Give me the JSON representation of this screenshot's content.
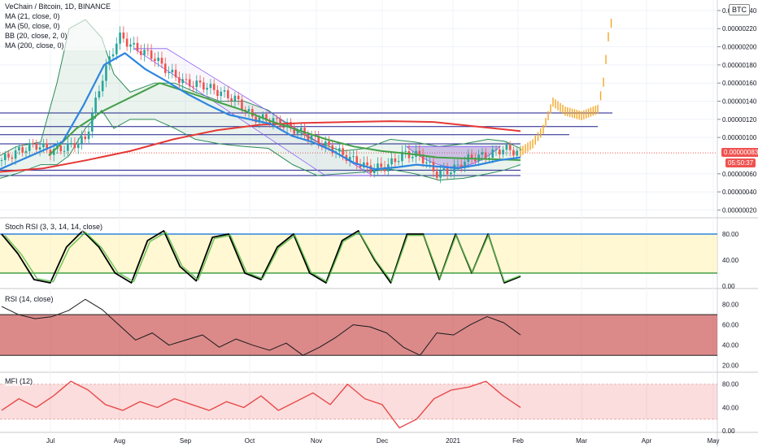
{
  "header": {
    "symbol_line": "VeChain / Bitcoin, 1D, BINANCE",
    "indicators": [
      "MA (21, close, 0)",
      "MA (50, close, 0)",
      "BB (20, close, 2, 0)",
      "MA (200, close, 0)"
    ],
    "currency_badge": "BTC"
  },
  "price_axis": {
    "ticks": [
      "0.00000240",
      "0.00000220",
      "0.00000200",
      "0.00000180",
      "0.00000160",
      "0.00000140",
      "0.00000120",
      "0.00000100",
      "0.00000060",
      "0.00000040",
      "0.00000020"
    ],
    "last_price": "0.00000083",
    "countdown": "05:50:37",
    "last_price_color": "#ef5350",
    "countdown_color": "#ef5350"
  },
  "panes": {
    "stoch": {
      "label": "Stoch RSI (3, 3, 14, 14, close)",
      "ticks": [
        "80.00",
        "40.00",
        "0.00"
      ]
    },
    "rsi": {
      "label": "RSI (14, close)",
      "ticks": [
        "80.00",
        "60.00",
        "40.00",
        "20.00"
      ]
    },
    "mfi": {
      "label": "MFI (12)",
      "ticks": [
        "80.00",
        "40.00",
        "0.00"
      ]
    }
  },
  "time_axis": [
    "Jul",
    "Aug",
    "Sep",
    "Oct",
    "Nov",
    "Dec",
    "2021",
    "Feb",
    "Mar",
    "Apr",
    "May"
  ],
  "colors": {
    "ma21": "#2e86de",
    "ma50": "#43a047",
    "ma200": "#e53935",
    "bb": "#2e8b57",
    "projection": "#f5a623",
    "candle_up": "#26a69a",
    "candle_down": "#ef5350",
    "stoch_k": "#000000",
    "stoch_d": "#5fbf4f",
    "rsi_line": "#1a1a1a",
    "mfi_line": "#e84a4a",
    "hline": "#1a1a8c"
  },
  "chart_data": [
    {
      "type": "line",
      "title": "VeChain / Bitcoin, 1D, BINANCE",
      "ylim": [
        1.5e-07,
        2.48e-06
      ],
      "series": [
        {
          "name": "price",
          "values": [
            7.5e-07,
            8.5e-07,
            9.2e-07,
            8.5e-07,
            9e-07,
            9.8e-07,
            1.65e-06,
            2.12e-06,
            1.98e-06,
            1.9e-06,
            1.72e-06,
            1.6e-06,
            1.58e-06,
            1.5e-06,
            1.42e-06,
            1.22e-06,
            1.2e-06,
            1.13e-06,
            1.05e-06,
            9.5e-07,
            8.5e-07,
            7.5e-07,
            6.5e-07,
            6.8e-07,
            8.2e-07,
            8e-07,
            6e-07,
            6.5e-07,
            7.8e-07,
            8e-07,
            8.8e-07,
            8.3e-07
          ]
        },
        {
          "name": "MA (21, close, 0)",
          "values": [
            6.5e-07,
            7.5e-07,
            8.5e-07,
            9.5e-07,
            1.35e-06,
            1.8e-06,
            1.93e-06,
            1.75e-06,
            1.62e-06,
            1.48e-06,
            1.36e-06,
            1.25e-06,
            1.2e-06,
            1.15e-06,
            1.02e-06,
            9.5e-07,
            8.5e-07,
            7.2e-07,
            6.5e-07,
            6.7e-07,
            7e-07,
            6.8e-07,
            6.6e-07,
            7e-07,
            7.5e-07,
            7.8e-07
          ]
        },
        {
          "name": "MA (50, close, 0)",
          "values": [
            8e-07,
            1.1e-06,
            1.3e-06,
            1.45e-06,
            1.6e-06,
            1.5e-06,
            1.4e-06,
            1.3e-06,
            1.18e-06,
            1.08e-06,
            9.8e-07,
            9e-07,
            8.5e-07,
            8.2e-07,
            7.8e-07,
            7.7e-07,
            7.6e-07,
            7.5e-07
          ]
        },
        {
          "name": "MA (200, close, 0)",
          "values": [
            6.2e-07,
            6.6e-07,
            7.5e-07,
            8.5e-07,
            9.8e-07,
            1.08e-06,
            1.14e-06,
            1.16e-06,
            1.17e-06,
            1.18e-06,
            1.17e-06,
            1.12e-06,
            1.07e-06
          ]
        }
      ]
    },
    {
      "type": "line",
      "title": "Stoch RSI (3, 3, 14, 14, close)",
      "ylim": [
        0,
        100
      ],
      "series": [
        {
          "name": "K",
          "values": [
            80,
            50,
            10,
            5,
            60,
            85,
            60,
            20,
            5,
            70,
            85,
            30,
            8,
            75,
            80,
            20,
            10,
            60,
            80,
            20,
            5,
            70,
            85,
            40,
            5,
            80,
            80,
            10,
            80,
            20,
            80,
            5,
            15
          ]
        }
      ]
    },
    {
      "type": "line",
      "title": "RSI (14, close)",
      "ylim": [
        15,
        90
      ],
      "series": [
        {
          "name": "RSI",
          "values": [
            78,
            70,
            66,
            68,
            74,
            85,
            75,
            60,
            45,
            52,
            40,
            45,
            50,
            38,
            46,
            40,
            35,
            42,
            30,
            38,
            48,
            60,
            58,
            52,
            38,
            30,
            52,
            50,
            60,
            68,
            62,
            50
          ]
        }
      ]
    },
    {
      "type": "line",
      "title": "MFI (12)",
      "ylim": [
        0,
        95
      ],
      "series": [
        {
          "name": "MFI",
          "values": [
            35,
            55,
            40,
            60,
            85,
            70,
            45,
            35,
            50,
            40,
            55,
            45,
            35,
            50,
            40,
            60,
            35,
            50,
            65,
            45,
            80,
            55,
            45,
            5,
            20,
            55,
            70,
            75,
            85,
            60,
            40
          ]
        }
      ]
    }
  ]
}
